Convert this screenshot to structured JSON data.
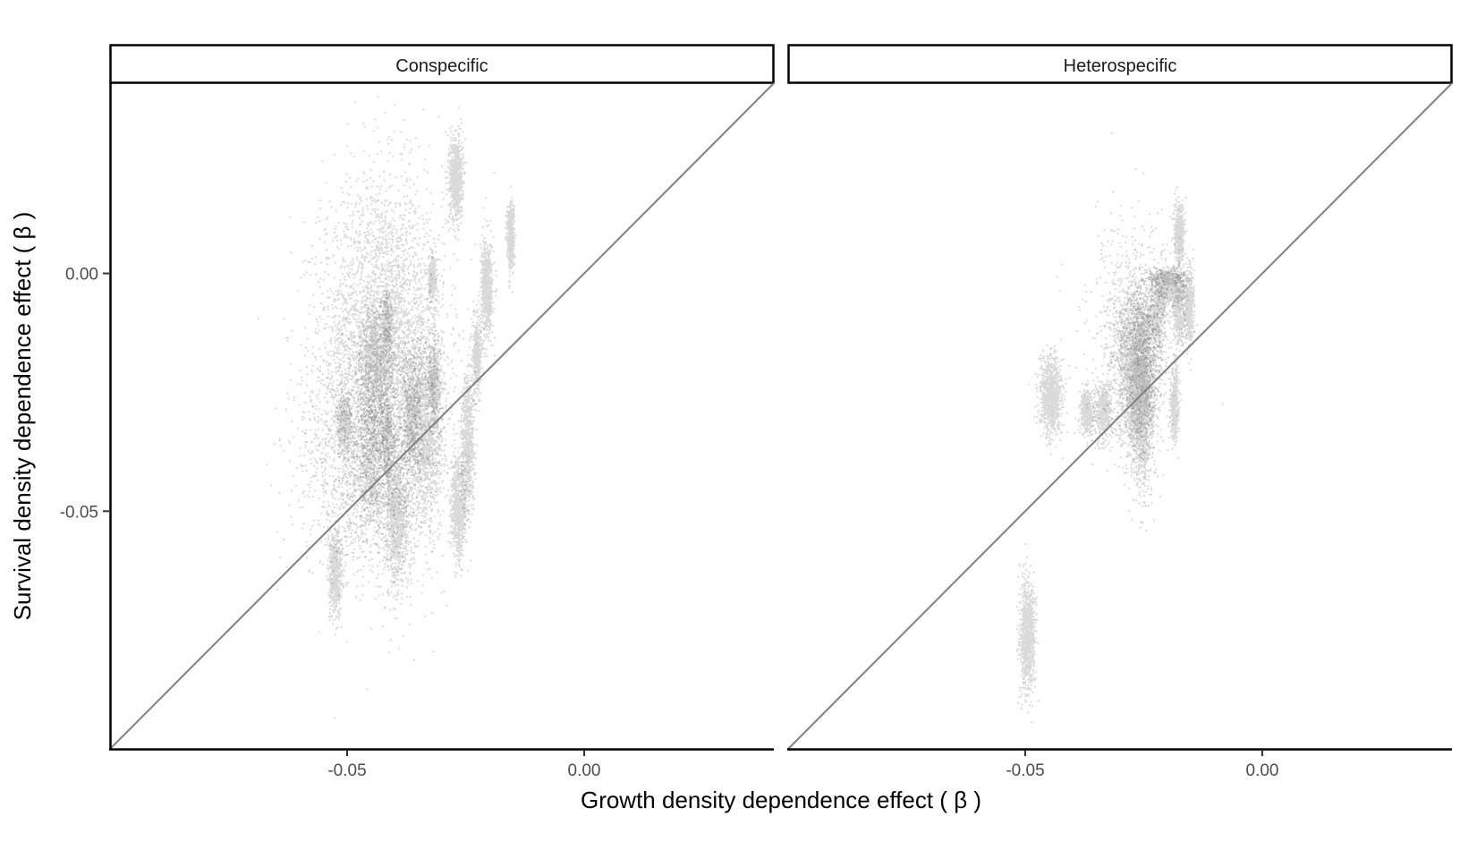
{
  "chart_data": {
    "type": "scatter",
    "xlabel": "Growth density dependence effect ( β )",
    "ylabel": "Survival density dependence effect ( β )",
    "xlim": [
      -0.1,
      0.04
    ],
    "ylim": [
      -0.1,
      0.04
    ],
    "x_ticks": [
      -0.05,
      0.0
    ],
    "x_tick_labels": [
      "-0.05",
      "0.00"
    ],
    "y_ticks": [
      0.0,
      -0.05
    ],
    "y_tick_labels": [
      "0.00",
      "-0.05"
    ],
    "grid": false,
    "legend": "none",
    "reference_line": {
      "slope": 1,
      "intercept": 0,
      "color": "#808080"
    },
    "point_color": "#000000",
    "point_alpha": 0.15,
    "panels": [
      {
        "facet": "Conspecific",
        "clusters": [
          {
            "x": -0.0425,
            "y": -0.018,
            "sx": 0.0065,
            "sy": 0.018,
            "n": 4500
          },
          {
            "x": -0.027,
            "y": 0.02,
            "sx": 0.0007,
            "sy": 0.0045,
            "n": 800
          },
          {
            "x": -0.0155,
            "y": 0.008,
            "sx": 0.0004,
            "sy": 0.0035,
            "n": 500
          },
          {
            "x": -0.0205,
            "y": -0.003,
            "sx": 0.0006,
            "sy": 0.005,
            "n": 700
          },
          {
            "x": -0.032,
            "y": -0.001,
            "sx": 0.0004,
            "sy": 0.002,
            "n": 350
          },
          {
            "x": -0.0435,
            "y": -0.02,
            "sx": 0.0018,
            "sy": 0.006,
            "n": 1200
          },
          {
            "x": -0.0415,
            "y": -0.01,
            "sx": 0.0005,
            "sy": 0.003,
            "n": 300
          },
          {
            "x": -0.0505,
            "y": -0.032,
            "sx": 0.0007,
            "sy": 0.003,
            "n": 500
          },
          {
            "x": -0.0395,
            "y": -0.051,
            "sx": 0.0012,
            "sy": 0.007,
            "n": 1100
          },
          {
            "x": -0.0415,
            "y": -0.035,
            "sx": 0.0006,
            "sy": 0.004,
            "n": 400
          },
          {
            "x": -0.045,
            "y": -0.04,
            "sx": 0.0015,
            "sy": 0.006,
            "n": 700
          },
          {
            "x": -0.0335,
            "y": -0.033,
            "sx": 0.0018,
            "sy": 0.01,
            "n": 1500
          },
          {
            "x": -0.0315,
            "y": -0.023,
            "sx": 0.0006,
            "sy": 0.004,
            "n": 500
          },
          {
            "x": -0.0365,
            "y": -0.03,
            "sx": 0.0009,
            "sy": 0.006,
            "n": 600
          },
          {
            "x": -0.0265,
            "y": -0.049,
            "sx": 0.0008,
            "sy": 0.005,
            "n": 800
          },
          {
            "x": -0.0245,
            "y": -0.035,
            "sx": 0.0007,
            "sy": 0.007,
            "n": 700
          },
          {
            "x": -0.0225,
            "y": -0.017,
            "sx": 0.0005,
            "sy": 0.004,
            "n": 400
          },
          {
            "x": -0.0525,
            "y": -0.063,
            "sx": 0.0007,
            "sy": 0.0045,
            "n": 600
          },
          {
            "x": -0.0485,
            "y": -0.04,
            "sx": 0.006,
            "sy": 0.012,
            "n": 1000
          }
        ]
      },
      {
        "facet": "Heterospecific",
        "clusters": [
          {
            "x": -0.0265,
            "y": -0.02,
            "sx": 0.0022,
            "sy": 0.008,
            "n": 2500
          },
          {
            "x": -0.0255,
            "y": -0.026,
            "sx": 0.0012,
            "sy": 0.009,
            "n": 1600
          },
          {
            "x": -0.0175,
            "y": 0.0085,
            "sx": 0.0005,
            "sy": 0.003,
            "n": 500
          },
          {
            "x": -0.0175,
            "y": -0.007,
            "sx": 0.0006,
            "sy": 0.004,
            "n": 500
          },
          {
            "x": -0.0155,
            "y": -0.007,
            "sx": 0.0006,
            "sy": 0.004,
            "n": 450
          },
          {
            "x": -0.022,
            "y": -0.008,
            "sx": 0.0009,
            "sy": 0.004,
            "n": 500
          },
          {
            "x": -0.0195,
            "y": -0.003,
            "sx": 0.0013,
            "sy": 0.002,
            "n": 500
          },
          {
            "x": -0.0205,
            "y": -0.001,
            "sx": 0.0018,
            "sy": 0.0008,
            "n": 300
          },
          {
            "x": -0.0185,
            "y": -0.028,
            "sx": 0.0004,
            "sy": 0.004,
            "n": 400
          },
          {
            "x": -0.0445,
            "y": -0.026,
            "sx": 0.0012,
            "sy": 0.004,
            "n": 900
          },
          {
            "x": -0.037,
            "y": -0.029,
            "sx": 0.0007,
            "sy": 0.0025,
            "n": 400
          },
          {
            "x": -0.0335,
            "y": -0.029,
            "sx": 0.0009,
            "sy": 0.003,
            "n": 500
          },
          {
            "x": -0.0495,
            "y": -0.076,
            "sx": 0.0008,
            "sy": 0.006,
            "n": 900
          },
          {
            "x": -0.027,
            "y": -0.012,
            "sx": 0.0045,
            "sy": 0.012,
            "n": 800
          }
        ]
      }
    ]
  }
}
